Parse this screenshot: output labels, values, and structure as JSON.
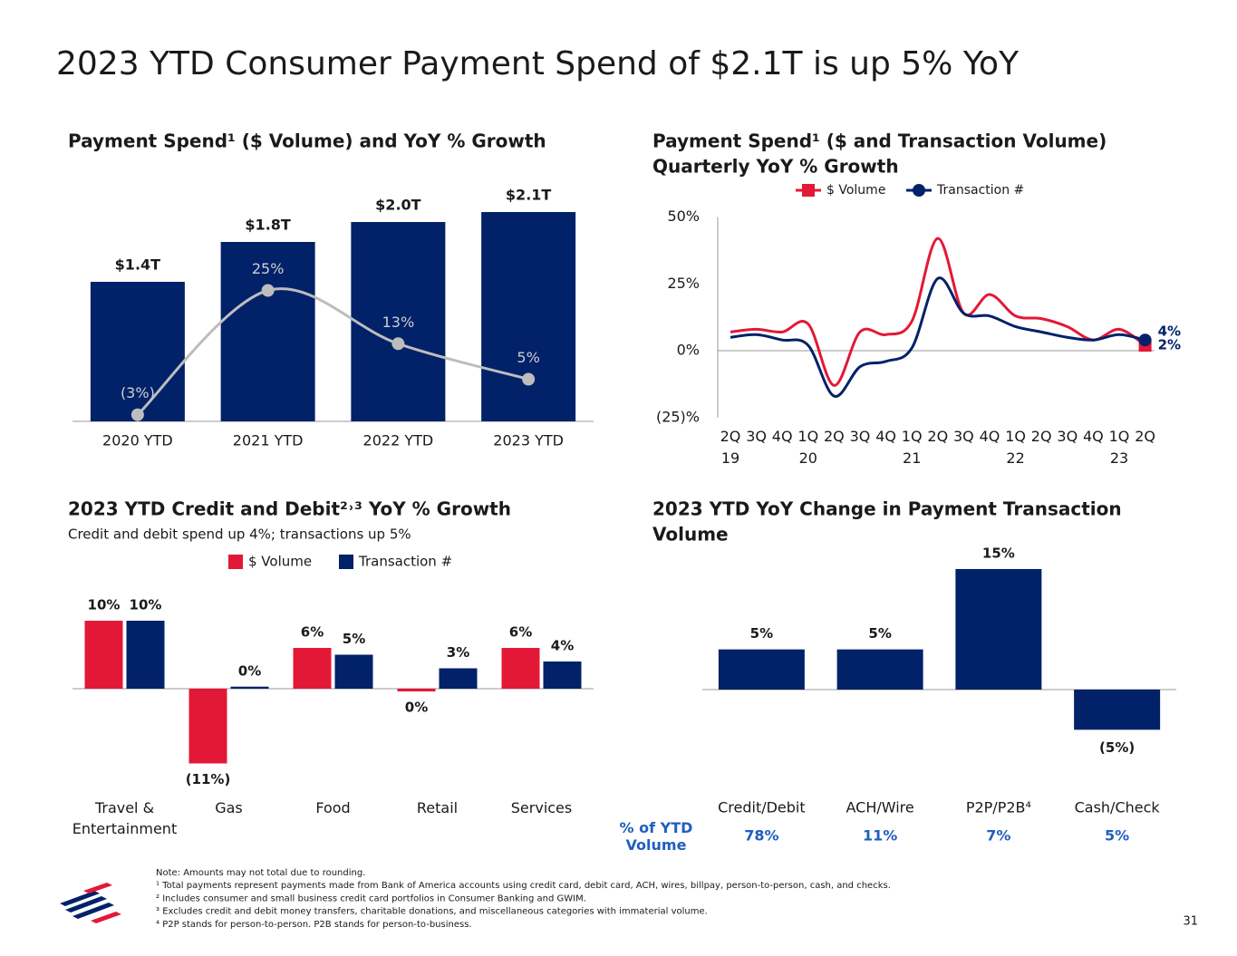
{
  "title": "2023 YTD Consumer Payment Spend of $2.1T is up 5% YoY",
  "chart_data": [
    {
      "type": "bar-line",
      "title": [
        "Payment Spend¹ ($ Volume) and YoY % Growth"
      ],
      "categories": [
        "2020 YTD",
        "2021 YTD",
        "2022 YTD",
        "2023 YTD"
      ],
      "series": [
        {
          "type": "bar",
          "color": "#012169",
          "values": [
            1.4,
            1.8,
            2.0,
            2.1
          ],
          "value_labels": [
            "$1.4T",
            "$1.8T",
            "$2.0T",
            "$2.1T"
          ]
        },
        {
          "type": "line",
          "axis": "y2",
          "color": "#bdbdbd",
          "values": [
            -3,
            25,
            13,
            5
          ],
          "value_labels": [
            "(3%)",
            "25%",
            "13%",
            "5%"
          ]
        }
      ]
    },
    {
      "type": "line",
      "title": [
        "Payment Spend¹ ($ and Transaction Volume)",
        "Quarterly YoY % Growth"
      ],
      "categories": [
        "2Q 19",
        "3Q",
        "4Q",
        "1Q 20",
        "2Q",
        "3Q",
        "4Q",
        "1Q 21",
        "2Q",
        "3Q",
        "4Q",
        "1Q 22",
        "2Q",
        "3Q",
        "4Q",
        "1Q 23",
        "2Q"
      ],
      "ylim": [
        -25,
        50
      ],
      "yticks": [
        {
          "value": -25,
          "label": "(25)%"
        },
        {
          "value": 0,
          "label": "0%"
        },
        {
          "value": 25,
          "label": "25%"
        },
        {
          "value": 50,
          "label": "50%"
        }
      ],
      "series": [
        {
          "name": "$ Volume",
          "color": "#e31837",
          "marker": "square",
          "values": [
            7,
            8,
            7,
            10,
            -13,
            7,
            6,
            11,
            42,
            14,
            21,
            13,
            12,
            9,
            4,
            8,
            2
          ],
          "value_labels": [
            null,
            null,
            null,
            null,
            null,
            null,
            null,
            null,
            null,
            null,
            null,
            null,
            null,
            null,
            null,
            null,
            "2%"
          ]
        },
        {
          "name": "Transaction #",
          "color": "#012169",
          "marker": "circle",
          "values": [
            5,
            6,
            4,
            2,
            -17,
            -6,
            -4,
            1,
            27,
            14,
            13,
            9,
            7,
            5,
            4,
            6,
            4
          ],
          "value_labels": [
            null,
            null,
            null,
            null,
            null,
            null,
            null,
            null,
            null,
            null,
            null,
            null,
            null,
            null,
            null,
            null,
            "4%"
          ]
        }
      ]
    },
    {
      "type": "grouped-bar",
      "title": [
        "2023 YTD Credit and Debit²˒³ YoY % Growth"
      ],
      "subtitle": "Credit and debit spend up 4%; transactions up 5%",
      "categories": [
        "Travel & Entertainment",
        "Gas",
        "Food",
        "Retail",
        "Services"
      ],
      "series": [
        {
          "name": "$ Volume",
          "color": "#e31837",
          "values": [
            10,
            -11,
            6,
            -0.4,
            6
          ],
          "value_labels": [
            "10%",
            "(11%)",
            "6%",
            "0%",
            "6%"
          ]
        },
        {
          "name": "Transaction #",
          "color": "#012169",
          "values": [
            10,
            0.3,
            5,
            3,
            4
          ],
          "value_labels": [
            "10%",
            "0%",
            "5%",
            "3%",
            "4%"
          ]
        }
      ]
    },
    {
      "type": "bar",
      "title": [
        "2023 YTD YoY Change in Payment Transaction",
        "Volume"
      ],
      "categories": [
        "Credit/Debit",
        "ACH/Wire",
        "P2P/P2B⁴",
        "Cash/Check"
      ],
      "color": "#012169",
      "values": [
        5,
        5,
        15,
        -5
      ],
      "value_labels": [
        "5%",
        "5%",
        "15%",
        "(5%)"
      ],
      "share_title": "% of YTD Volume",
      "share_labels": [
        "78%",
        "11%",
        "7%",
        "5%"
      ]
    }
  ],
  "footnotes": [
    "Note: Amounts may not total due to rounding.",
    "¹ Total payments represent payments made from Bank of America accounts using credit card, debit card, ACH, wires, billpay, person-to-person, cash, and checks.",
    "² Includes consumer and small business credit card portfolios in Consumer Banking and GWIM.",
    "³ Excludes credit and debit money transfers, charitable donations, and miscellaneous categories with immaterial volume.",
    "⁴ P2P stands for person-to-person. P2B stands for person-to-business."
  ],
  "page_number": "31"
}
